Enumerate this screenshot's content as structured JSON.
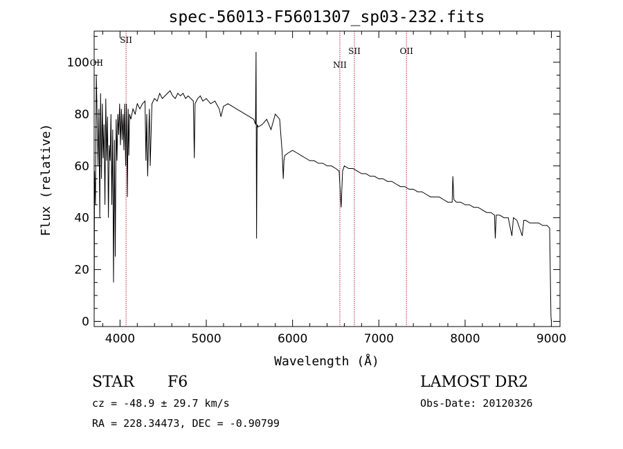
{
  "chart_data": {
    "type": "line",
    "title": "spec-56013-F5601307_sp03-232.fits",
    "xlabel": "Wavelength (Å)",
    "ylabel": "Flux (relative)",
    "xlim": [
      3700,
      9100
    ],
    "ylim": [
      -2,
      112
    ],
    "xticks": [
      4000,
      5000,
      6000,
      7000,
      8000,
      9000
    ],
    "yticks": [
      0,
      20,
      40,
      60,
      80,
      100
    ],
    "grid": false,
    "line_color": "#000000",
    "marker_color": "#aa2222",
    "lines": [
      {
        "name": "SII",
        "wavelength": 4070
      },
      {
        "name": "OII",
        "wavelength": 3727
      },
      {
        "name": "NII",
        "wavelength": 6548
      },
      {
        "name": "SII",
        "wavelength": 6717
      },
      {
        "name": "OII",
        "wavelength": 7320
      }
    ],
    "series": [
      {
        "x": [
          3700,
          3705,
          3715,
          3725,
          3735,
          3745,
          3755,
          3765,
          3775,
          3785,
          3795,
          3805,
          3815,
          3825,
          3835,
          3845,
          3855,
          3865,
          3875,
          3885,
          3895,
          3905,
          3915,
          3925,
          3935,
          3945,
          3955,
          3965,
          3975,
          3985,
          3995,
          4005,
          4015,
          4025,
          4035,
          4045,
          4055,
          4065,
          4075,
          4085,
          4095,
          4102,
          4110,
          4125,
          4150,
          4175,
          4200,
          4230,
          4260,
          4290,
          4300,
          4310,
          4320,
          4340,
          4350,
          4370,
          4400,
          4430,
          4460,
          4490,
          4520,
          4550,
          4580,
          4610,
          4640,
          4670,
          4700,
          4730,
          4760,
          4790,
          4820,
          4850,
          4861,
          4870,
          4900,
          4930,
          4960,
          5000,
          5050,
          5100,
          5150,
          5170,
          5200,
          5250,
          5300,
          5350,
          5400,
          5450,
          5500,
          5550,
          5570,
          5577,
          5582,
          5590,
          5600,
          5650,
          5700,
          5750,
          5800,
          5850,
          5880,
          5892,
          5900,
          5910,
          5950,
          6000,
          6050,
          6100,
          6150,
          6200,
          6250,
          6300,
          6350,
          6400,
          6450,
          6500,
          6540,
          6563,
          6580,
          6600,
          6650,
          6700,
          6750,
          6800,
          6850,
          6900,
          6950,
          7000,
          7050,
          7100,
          7150,
          7200,
          7250,
          7300,
          7350,
          7400,
          7450,
          7500,
          7550,
          7600,
          7650,
          7700,
          7750,
          7800,
          7850,
          7858,
          7870,
          7900,
          7950,
          8000,
          8050,
          8100,
          8150,
          8200,
          8250,
          8300,
          8340,
          8350,
          8360,
          8400,
          8450,
          8500,
          8542,
          8560,
          8600,
          8662,
          8680,
          8700,
          8750,
          8800,
          8850,
          8900,
          8950,
          8980,
          8995,
          9000
        ],
        "values": [
          0,
          58,
          45,
          95,
          78,
          60,
          82,
          40,
          88,
          55,
          84,
          63,
          76,
          45,
          86,
          62,
          79,
          40,
          68,
          62,
          80,
          45,
          74,
          15,
          70,
          25,
          78,
          62,
          80,
          72,
          84,
          68,
          82,
          70,
          80,
          66,
          84,
          60,
          84,
          48,
          82,
          64,
          80,
          78,
          82,
          80,
          84,
          82,
          84,
          85,
          62,
          80,
          56,
          82,
          60,
          84,
          86,
          85,
          88,
          86,
          87,
          88,
          89,
          87,
          86,
          88,
          87,
          88,
          86,
          87,
          86,
          85,
          63,
          84,
          86,
          87,
          85,
          86,
          84,
          85,
          82,
          79,
          83,
          84,
          83,
          82,
          81,
          80,
          79,
          78,
          76,
          104,
          32,
          76,
          75,
          76,
          78,
          74,
          80,
          78,
          65,
          55,
          62,
          64,
          65,
          66,
          65,
          64,
          63,
          62,
          62,
          61,
          61,
          60,
          60,
          59,
          58,
          44,
          58,
          60,
          59,
          59,
          58,
          57,
          57,
          56,
          56,
          55,
          55,
          54,
          54,
          53,
          52,
          52,
          51,
          51,
          50,
          50,
          49,
          48,
          48,
          48,
          47,
          46,
          46,
          56,
          47,
          46,
          46,
          45,
          45,
          44,
          44,
          43,
          42,
          42,
          41,
          32,
          41,
          41,
          40,
          40,
          33,
          40,
          39,
          33,
          39,
          39,
          38,
          38,
          38,
          37,
          37,
          36,
          2,
          0
        ]
      }
    ]
  },
  "info": {
    "object_type": "STAR",
    "subclass": "F6",
    "cz": "cz = -48.9 ± 29.7 km/s",
    "coords": "RA = 228.34473, DEC =  -0.90799",
    "survey": "LAMOST DR2",
    "obs_date": "Obs-Date: 20120326"
  }
}
